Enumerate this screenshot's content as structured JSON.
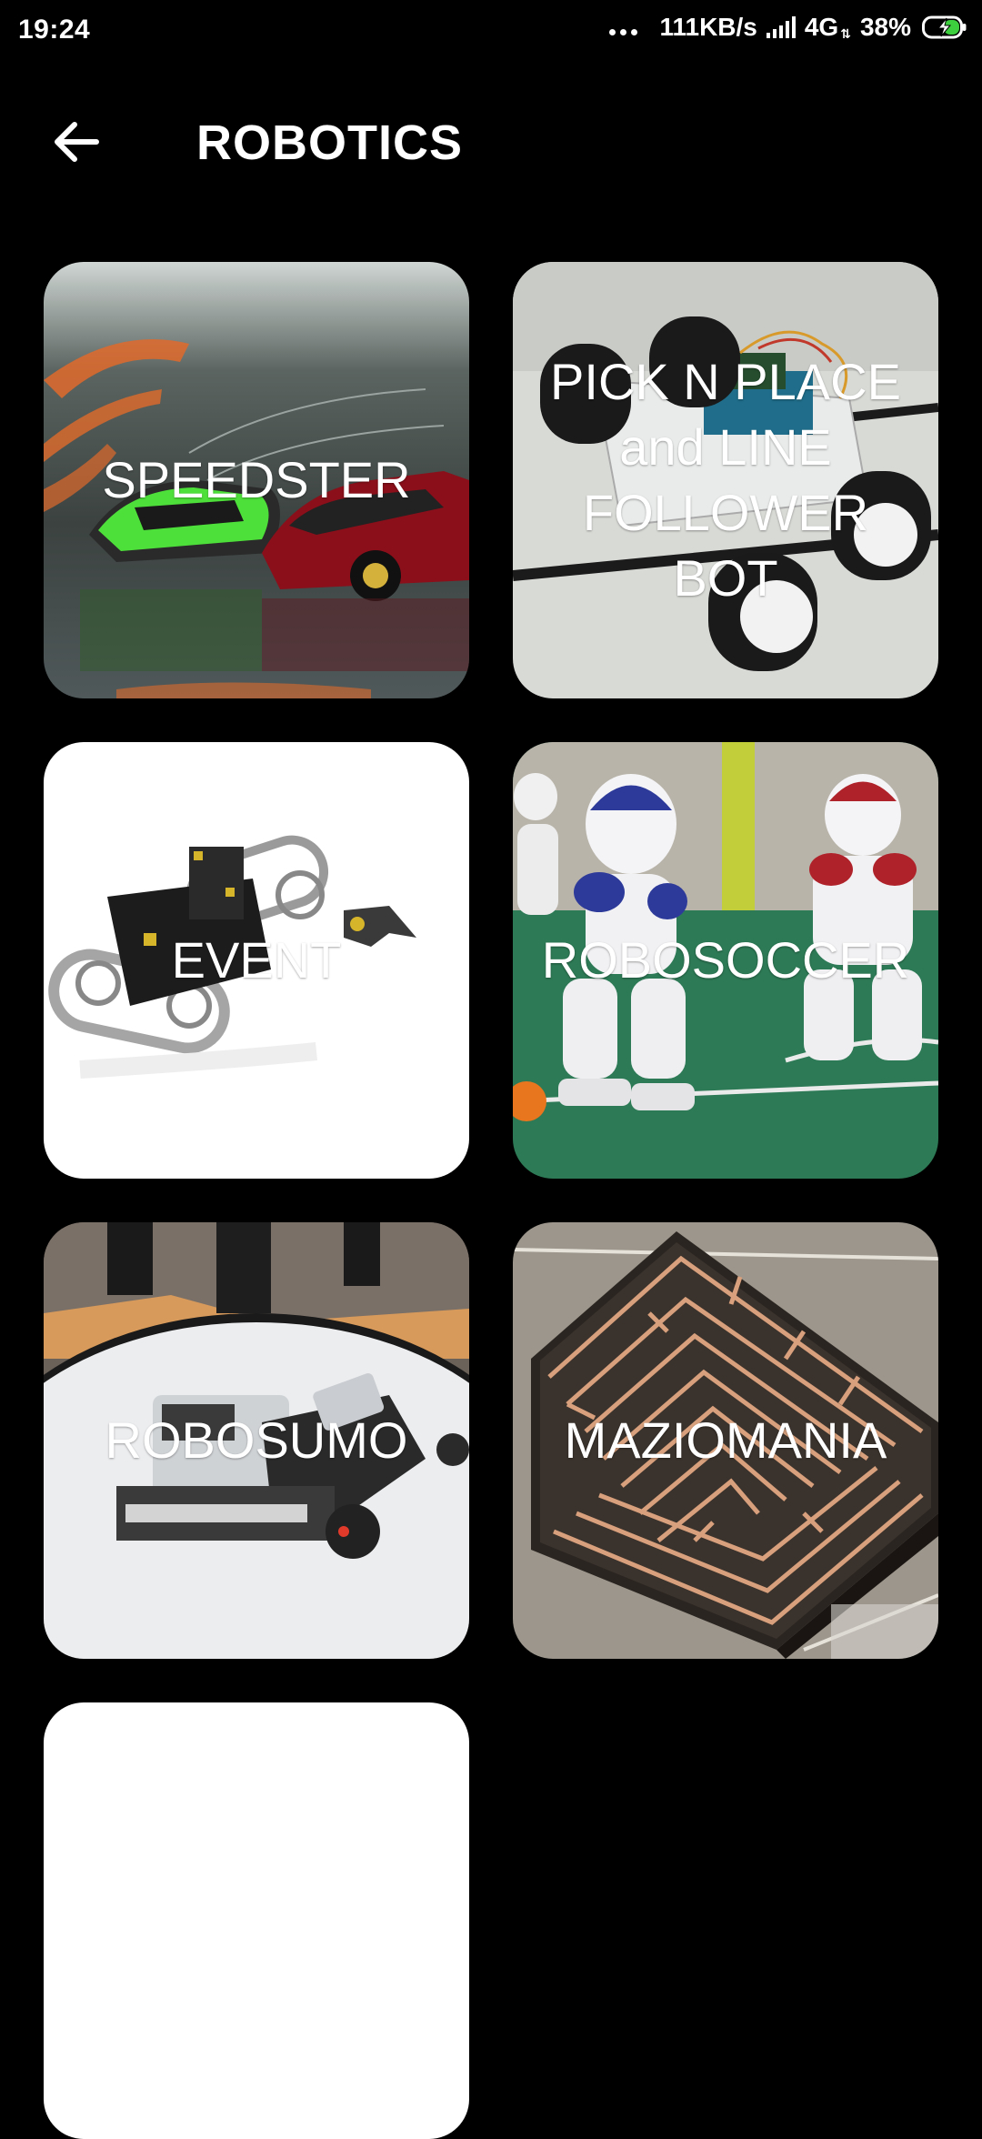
{
  "status_bar": {
    "time": "19:24",
    "speed": "111KB/s",
    "network": "4G",
    "battery": "38%"
  },
  "header": {
    "title": "ROBOTICS",
    "back_icon": "arrow-left-icon"
  },
  "events": [
    {
      "label": "SPEEDSTER"
    },
    {
      "label": "PICK N PLACE and LINE FOLLOWER BOT"
    },
    {
      "label": "EVENT"
    },
    {
      "label": "ROBOSOCCER"
    },
    {
      "label": "ROBOSUMO"
    },
    {
      "label": "MAZIOMANIA"
    }
  ],
  "colors": {
    "background": "#000000",
    "text": "#ffffff",
    "battery_charge": "#3ecf3e"
  }
}
